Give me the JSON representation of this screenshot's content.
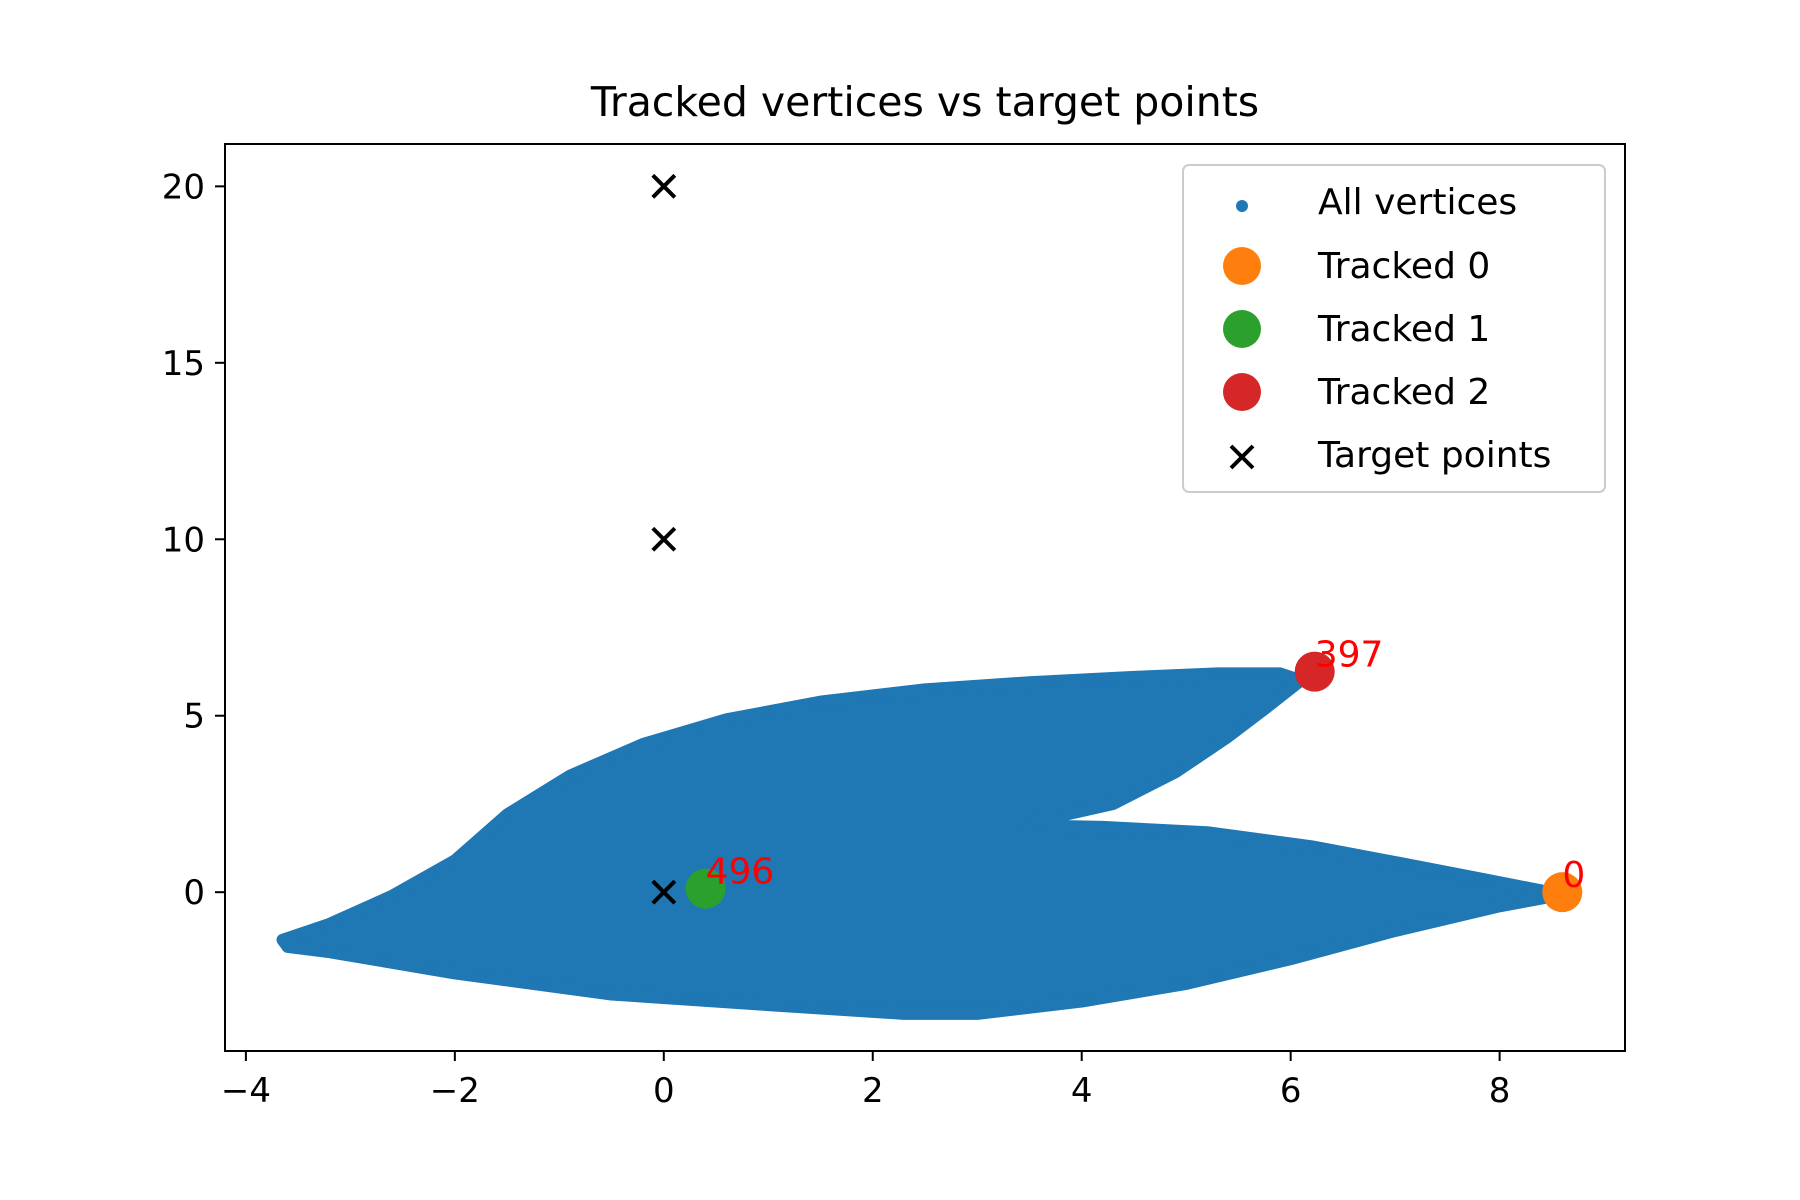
{
  "chart_data": {
    "type": "scatter",
    "title": "Tracked vertices vs target points",
    "xlabel": "",
    "ylabel": "",
    "xlim": [
      -4.2,
      9.2
    ],
    "ylim": [
      -4.5,
      21.2
    ],
    "xticks": [
      -4,
      -2,
      0,
      2,
      4,
      6,
      8
    ],
    "xtick_labels": [
      "−4",
      "−2",
      "0",
      "2",
      "4",
      "6",
      "8"
    ],
    "yticks": [
      0,
      5,
      10,
      15,
      20
    ],
    "ytick_labels": [
      "0",
      "5",
      "10",
      "15",
      "20"
    ],
    "grid": false,
    "legend_position": "top-right",
    "all_vertices": {
      "name": "All vertices",
      "color": "#1f77b4",
      "outline": [
        [
          -3.65,
          -1.35
        ],
        [
          -3.2,
          -0.9
        ],
        [
          -2.6,
          -0.1
        ],
        [
          -2.0,
          0.9
        ],
        [
          -1.5,
          2.2
        ],
        [
          -0.9,
          3.3
        ],
        [
          -0.2,
          4.2
        ],
        [
          0.6,
          4.9
        ],
        [
          1.5,
          5.4
        ],
        [
          2.5,
          5.75
        ],
        [
          3.5,
          5.95
        ],
        [
          4.5,
          6.1
        ],
        [
          5.3,
          6.2
        ],
        [
          5.9,
          6.2
        ],
        [
          6.1,
          6.0
        ],
        [
          5.8,
          5.3
        ],
        [
          5.4,
          4.4
        ],
        [
          4.9,
          3.4
        ],
        [
          4.3,
          2.5
        ],
        [
          3.4,
          1.9
        ],
        [
          4.2,
          1.85
        ],
        [
          5.2,
          1.7
        ],
        [
          6.2,
          1.3
        ],
        [
          7.1,
          0.8
        ],
        [
          7.8,
          0.4
        ],
        [
          8.4,
          0.05
        ],
        [
          8.55,
          -0.1
        ],
        [
          8.0,
          -0.4
        ],
        [
          7.0,
          -1.1
        ],
        [
          6.0,
          -1.9
        ],
        [
          5.0,
          -2.6
        ],
        [
          4.0,
          -3.1
        ],
        [
          3.0,
          -3.45
        ],
        [
          2.3,
          -3.45
        ],
        [
          1.0,
          -3.2
        ],
        [
          -0.5,
          -2.9
        ],
        [
          -2.0,
          -2.3
        ],
        [
          -3.2,
          -1.7
        ],
        [
          -3.6,
          -1.55
        ]
      ]
    },
    "tracked": [
      {
        "name": "Tracked 0",
        "color": "#ff7f0e",
        "x": 8.6,
        "y": 0.0,
        "label": "0"
      },
      {
        "name": "Tracked 1",
        "color": "#2ca02c",
        "x": 0.4,
        "y": 0.1,
        "label": "496"
      },
      {
        "name": "Tracked 2",
        "color": "#d62728",
        "x": 6.23,
        "y": 6.25,
        "label": "397"
      }
    ],
    "targets": {
      "name": "Target points",
      "color": "#000000",
      "points": [
        [
          0,
          0
        ],
        [
          0,
          10
        ],
        [
          0,
          20
        ]
      ]
    },
    "annotation_color": "#ff0000"
  }
}
